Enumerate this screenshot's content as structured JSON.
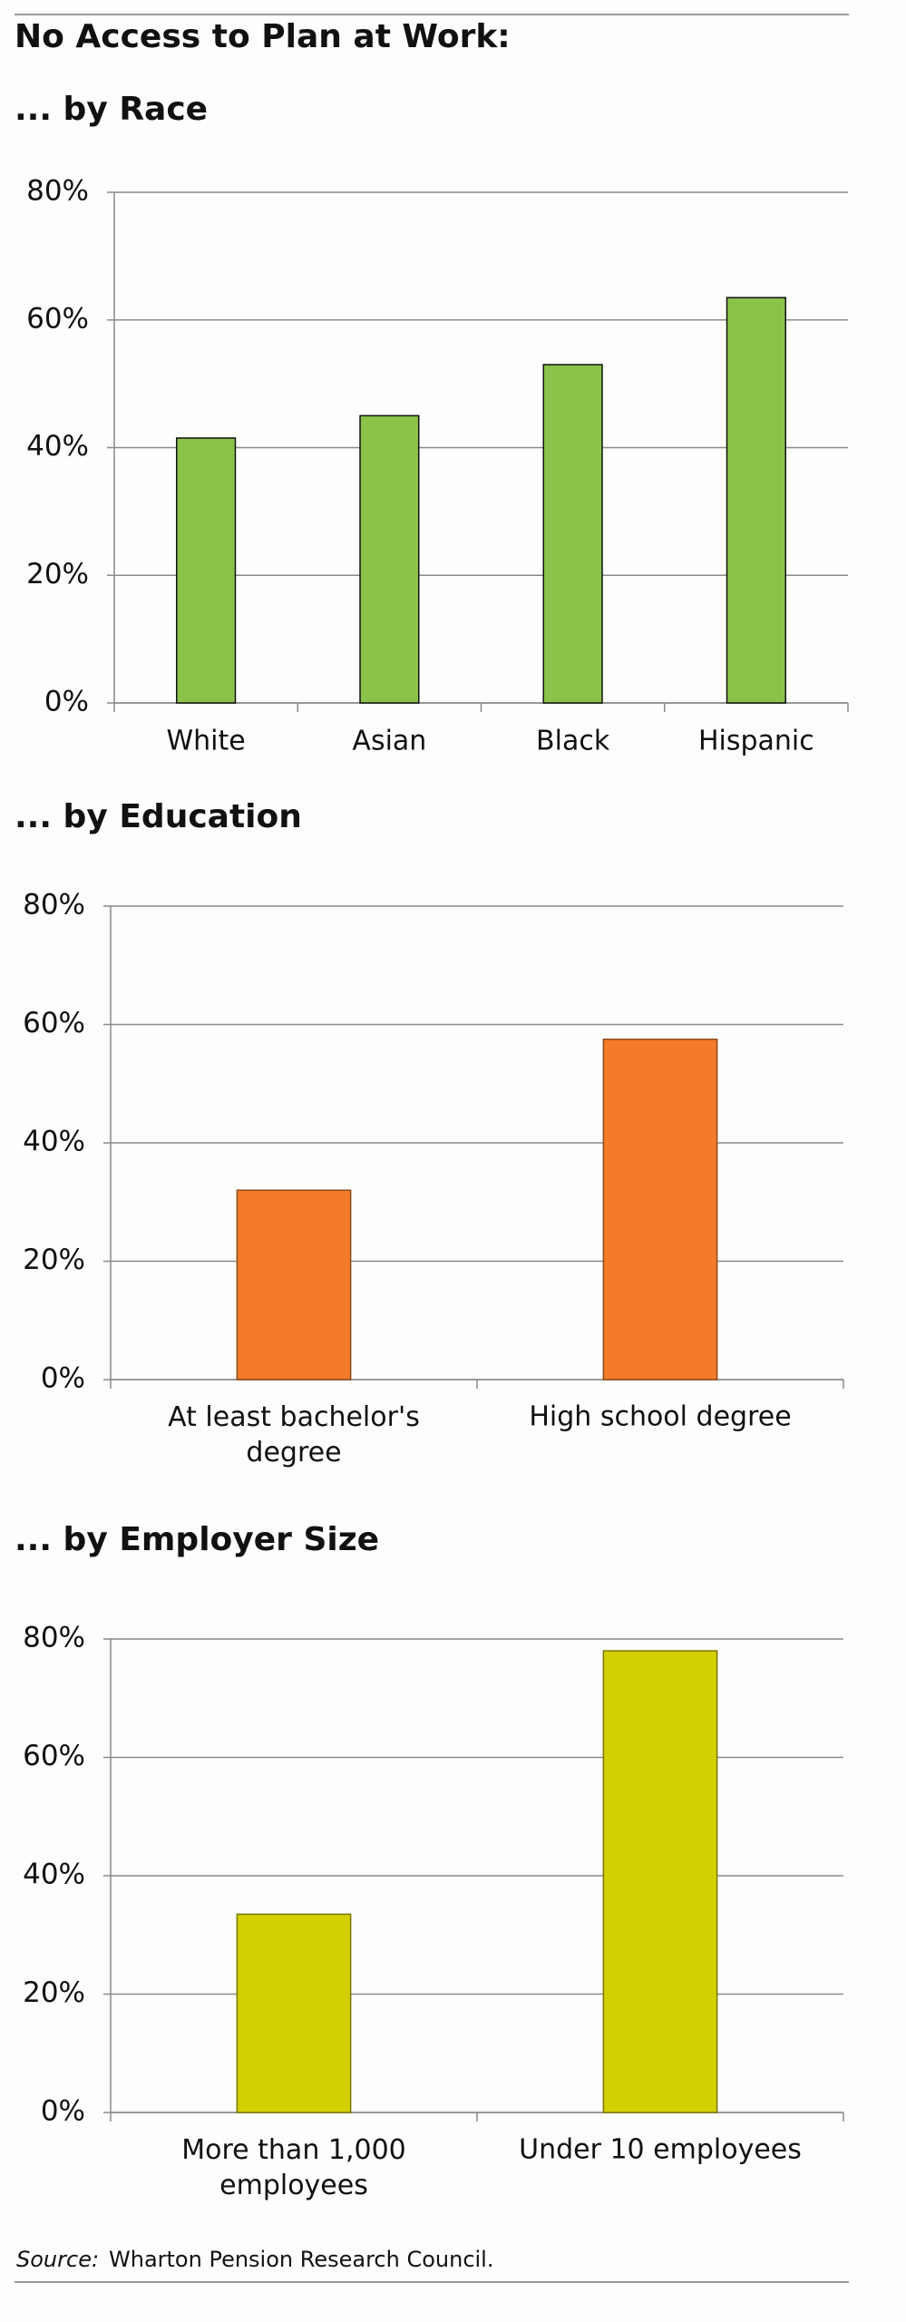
{
  "title": "No Access to Plan at Work:",
  "source": {
    "label": "Source:",
    "text": "Wharton Pension Research Council."
  },
  "chart_data": [
    {
      "type": "bar",
      "title": "... by Race",
      "categories": [
        "White",
        "Asian",
        "Black",
        "Hispanic"
      ],
      "values": [
        41.5,
        45,
        53,
        63.5
      ],
      "color": "#8bc34a",
      "ylim": [
        0,
        80
      ],
      "yticks": [
        {
          "value": 0,
          "label": "0%"
        },
        {
          "value": 20,
          "label": "20%"
        },
        {
          "value": 40,
          "label": "40%"
        },
        {
          "value": 60,
          "label": "60%"
        },
        {
          "value": 80,
          "label": "80%"
        }
      ],
      "grid": true
    },
    {
      "type": "bar",
      "title": "... by Education",
      "categories": [
        "At least bachelor's degree",
        "High school degree"
      ],
      "values": [
        32,
        57.5
      ],
      "color": "#f47b2a",
      "ylim": [
        0,
        80
      ],
      "yticks": [
        {
          "value": 0,
          "label": "0%"
        },
        {
          "value": 20,
          "label": "20%"
        },
        {
          "value": 40,
          "label": "40%"
        },
        {
          "value": 60,
          "label": "60%"
        },
        {
          "value": 80,
          "label": "80%"
        }
      ],
      "grid": true
    },
    {
      "type": "bar",
      "title": "... by Employer Size",
      "categories": [
        "More than 1,000 employees",
        "Under 10 employees"
      ],
      "values": [
        33.5,
        78
      ],
      "color": "#d4cf00",
      "ylim": [
        0,
        80
      ],
      "yticks": [
        {
          "value": 0,
          "label": "0%"
        },
        {
          "value": 20,
          "label": "20%"
        },
        {
          "value": 40,
          "label": "40%"
        },
        {
          "value": 60,
          "label": "60%"
        },
        {
          "value": 80,
          "label": "80%"
        }
      ],
      "grid": true
    }
  ]
}
